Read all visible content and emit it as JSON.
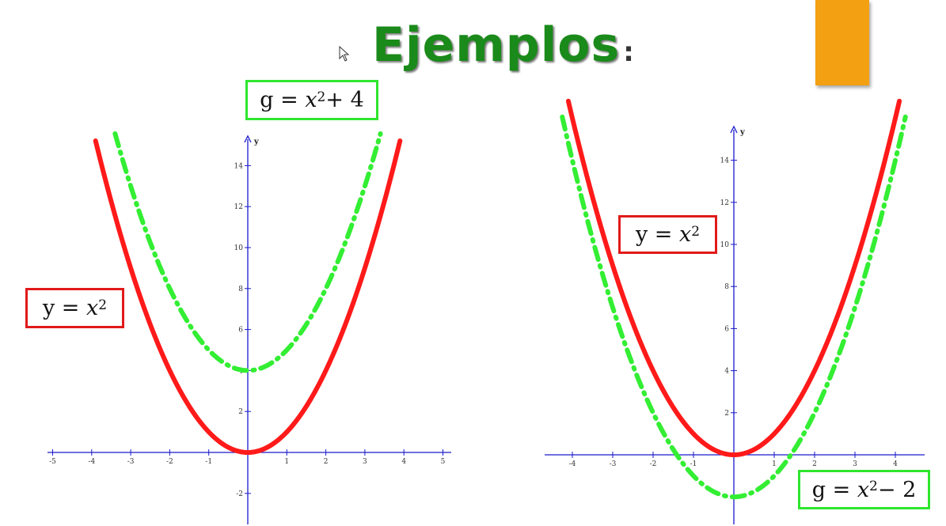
{
  "page": {
    "title": "Ejemplos",
    "title_punct": ":",
    "colors": {
      "title": "#1a8a1a",
      "orange_tab": "#f3a012",
      "base_curve": "#ff1a1a",
      "shifted_curve": "#33ee33",
      "axis": "#1a1acc"
    }
  },
  "chart_data": [
    {
      "type": "line",
      "title": "",
      "xlabel": "",
      "ylabel": "y",
      "xlim": [
        -5,
        5
      ],
      "ylim": [
        -2,
        15
      ],
      "xticks": [
        -5,
        -4,
        -3,
        -2,
        -1,
        1,
        2,
        3,
        4,
        5
      ],
      "yticks": [
        -2,
        2,
        4,
        6,
        8,
        10,
        12,
        14
      ],
      "grid": false,
      "series": [
        {
          "name": "",
          "function": "x^2",
          "domain": [
            -3.9,
            3.9
          ],
          "style": "solid",
          "color": "#ff1a1a"
        },
        {
          "name": "",
          "function": "x^2 + 4",
          "domain": [
            -3.4,
            3.4
          ],
          "style": "dashdot",
          "color": "#33ee33"
        }
      ],
      "labels": [
        {
          "lhs": "g",
          "rhs_var": "x",
          "rhs_exp": "2",
          "rhs_rest": " + 4",
          "color": "green"
        },
        {
          "lhs": "y",
          "rhs_var": "x",
          "rhs_exp": "2",
          "rhs_rest": "",
          "color": "red"
        }
      ]
    },
    {
      "type": "line",
      "title": "",
      "xlabel": "",
      "ylabel": "y",
      "xlim": [
        -4.5,
        4.5
      ],
      "ylim": [
        -2,
        15
      ],
      "xticks": [
        -4,
        -3,
        -2,
        -1,
        1,
        2,
        3,
        4
      ],
      "yticks": [
        2,
        4,
        6,
        8,
        10,
        12,
        14
      ],
      "grid": false,
      "series": [
        {
          "name": "",
          "function": "x^2",
          "domain": [
            -4.1,
            4.1
          ],
          "style": "solid",
          "color": "#ff1a1a"
        },
        {
          "name": "",
          "function": "x^2 - 2",
          "domain": [
            -4.25,
            4.25
          ],
          "style": "dashdot",
          "color": "#33ee33"
        }
      ],
      "labels": [
        {
          "lhs": "y",
          "rhs_var": "x",
          "rhs_exp": "2",
          "rhs_rest": "",
          "color": "red"
        },
        {
          "lhs": "g",
          "rhs_var": "x",
          "rhs_exp": "2",
          "rhs_rest": " − 2",
          "color": "green"
        }
      ]
    }
  ]
}
